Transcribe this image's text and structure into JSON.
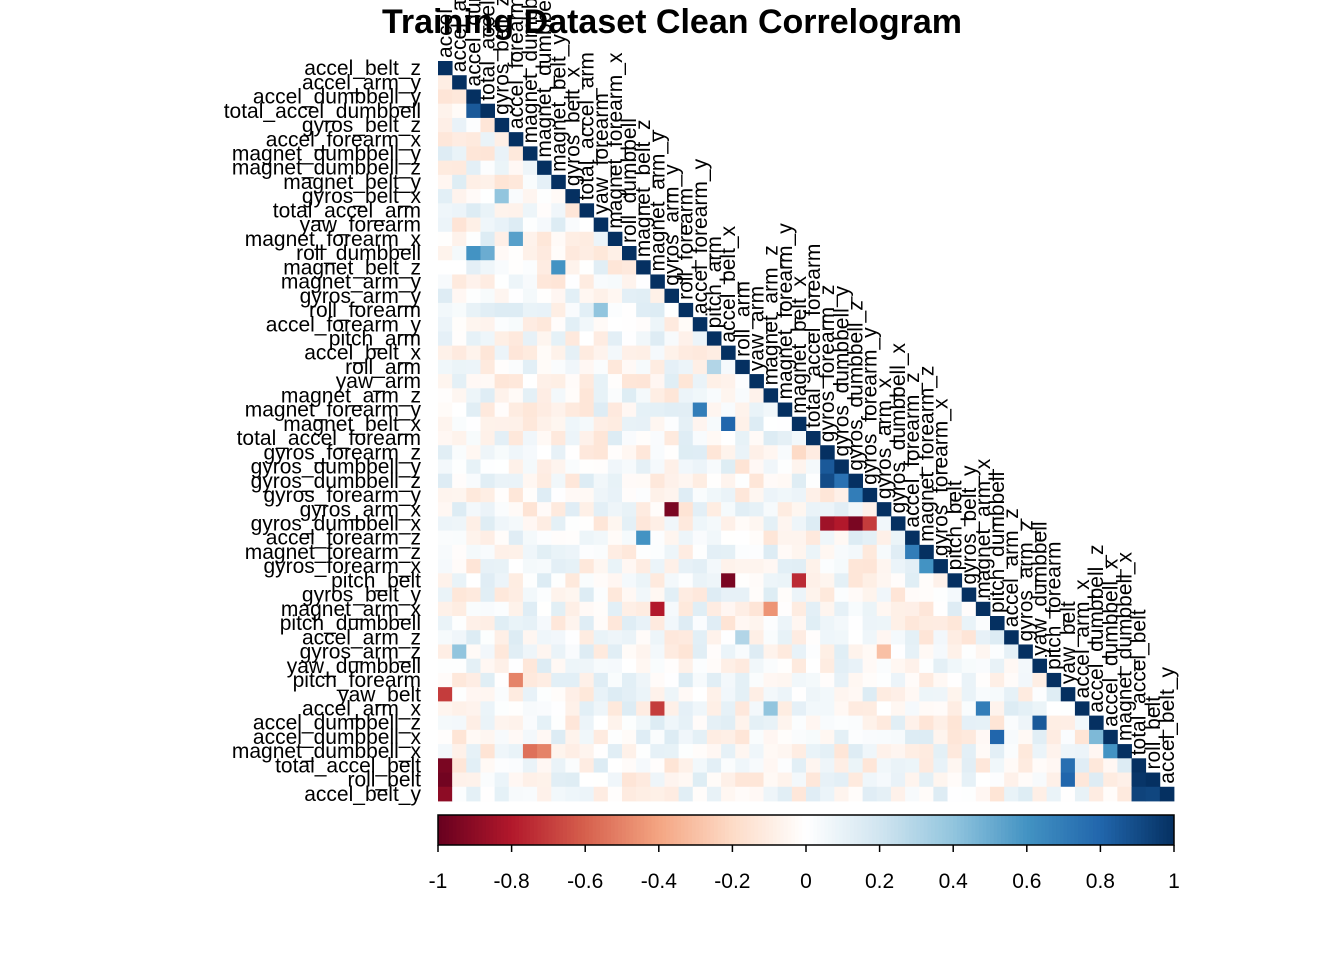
{
  "chart_data": {
    "type": "heatmap",
    "subtype": "correlogram-lower-triangle",
    "title": "Training Dataset Clean Correlogram",
    "variables": [
      "accel_belt_z",
      "accel_arm_y",
      "accel_dumbbell_y",
      "total_accel_dumbbell",
      "gyros_belt_z",
      "accel_forearm_x",
      "magnet_dumbbell_y",
      "magnet_dumbbell_z",
      "magnet_belt_y",
      "gyros_belt_x",
      "total_accel_arm",
      "yaw_forearm",
      "magnet_forearm_x",
      "roll_dumbbell",
      "magnet_belt_z",
      "magnet_arm_y",
      "gyros_arm_y",
      "roll_forearm",
      "accel_forearm_y",
      "pitch_arm",
      "accel_belt_x",
      "roll_arm",
      "yaw_arm",
      "magnet_arm_z",
      "magnet_forearm_y",
      "magnet_belt_x",
      "total_accel_forearm",
      "gyros_forearm_z",
      "gyros_dumbbell_y",
      "gyros_dumbbell_z",
      "gyros_forearm_y",
      "gyros_arm_x",
      "gyros_dumbbell_x",
      "accel_forearm_z",
      "magnet_forearm_z",
      "gyros_forearm_x",
      "pitch_belt",
      "gyros_belt_y",
      "magnet_arm_x",
      "pitch_dumbbell",
      "accel_arm_z",
      "gyros_arm_z",
      "yaw_dumbbell",
      "pitch_forearm",
      "yaw_belt",
      "accel_arm_x",
      "accel_dumbbell_z",
      "accel_dumbbell_x",
      "magnet_dumbbell_x",
      "total_accel_belt",
      "roll_belt",
      "accel_belt_y"
    ],
    "strong_pairs": [
      {
        "a": "gyros_dumbbell_z",
        "b": "gyros_dumbbell_x",
        "r": -0.95
      },
      {
        "a": "gyros_forearm_z",
        "b": "gyros_dumbbell_x",
        "r": -0.85
      },
      {
        "a": "gyros_dumbbell_y",
        "b": "gyros_dumbbell_x",
        "r": -0.8
      },
      {
        "a": "gyros_forearm_y",
        "b": "gyros_dumbbell_x",
        "r": -0.7
      },
      {
        "a": "gyros_forearm_z",
        "b": "gyros_dumbbell_y",
        "r": 0.85
      },
      {
        "a": "gyros_forearm_z",
        "b": "gyros_dumbbell_z",
        "r": 0.9
      },
      {
        "a": "gyros_dumbbell_y",
        "b": "gyros_dumbbell_z",
        "r": 0.75
      },
      {
        "a": "gyros_forearm_y",
        "b": "gyros_dumbbell_z",
        "r": 0.7
      },
      {
        "a": "magnet_forearm_z",
        "b": "gyros_forearm_x",
        "r": 0.6
      },
      {
        "a": "gyros_arm_y",
        "b": "gyros_arm_x",
        "r": -0.95
      },
      {
        "a": "accel_forearm_x",
        "b": "magnet_forearm_x",
        "r": 0.55
      },
      {
        "a": "magnet_arm_y",
        "b": "magnet_arm_x",
        "r": -0.8
      },
      {
        "a": "accel_arm_x",
        "b": "magnet_arm_x",
        "r": 0.7
      },
      {
        "a": "magnet_arm_z",
        "b": "magnet_arm_x",
        "r": -0.45
      },
      {
        "a": "magnet_belt_x",
        "b": "pitch_belt",
        "r": -0.75
      },
      {
        "a": "accel_belt_x",
        "b": "pitch_belt",
        "r": -0.95
      },
      {
        "a": "accel_belt_x",
        "b": "magnet_belt_x",
        "r": 0.8
      },
      {
        "a": "pitch_arm",
        "b": "roll_arm",
        "r": 0.3
      },
      {
        "a": "roll_arm",
        "b": "accel_arm_z",
        "r": 0.3
      },
      {
        "a": "accel_arm_y",
        "b": "gyros_arm_z",
        "r": 0.4
      },
      {
        "a": "accel_belt_z",
        "b": "roll_belt",
        "r": -0.97
      },
      {
        "a": "accel_belt_z",
        "b": "total_accel_belt",
        "r": -0.95
      },
      {
        "a": "accel_belt_z",
        "b": "accel_belt_y",
        "r": -0.9
      },
      {
        "a": "roll_belt",
        "b": "total_accel_belt",
        "r": 0.98
      },
      {
        "a": "roll_belt",
        "b": "accel_belt_y",
        "r": 0.92
      },
      {
        "a": "total_accel_belt",
        "b": "accel_belt_y",
        "r": 0.93
      },
      {
        "a": "yaw_belt",
        "b": "roll_belt",
        "r": 0.8
      },
      {
        "a": "yaw_belt",
        "b": "total_accel_belt",
        "r": 0.76
      },
      {
        "a": "accel_belt_z",
        "b": "yaw_belt",
        "r": -0.7
      },
      {
        "a": "total_accel_dumbbell",
        "b": "accel_dumbbell_y",
        "r": 0.85
      },
      {
        "a": "accel_dumbbell_y",
        "b": "roll_dumbbell",
        "r": 0.6
      },
      {
        "a": "total_accel_dumbbell",
        "b": "roll_dumbbell",
        "r": 0.5
      },
      {
        "a": "magnet_dumbbell_x",
        "b": "accel_dumbbell_x",
        "r": 0.6
      },
      {
        "a": "accel_dumbbell_z",
        "b": "yaw_dumbbell",
        "r": 0.85
      },
      {
        "a": "accel_dumbbell_x",
        "b": "pitch_dumbbell",
        "r": 0.8
      },
      {
        "a": "accel_dumbbell_z",
        "b": "accel_dumbbell_x",
        "r": 0.45
      },
      {
        "a": "magnet_dumbbell_y",
        "b": "magnet_dumbbell_x",
        "r": -0.55
      },
      {
        "a": "magnet_dumbbell_x",
        "b": "magnet_dumbbell_z",
        "r": -0.5
      },
      {
        "a": "accel_forearm_y",
        "b": "magnet_forearm_y",
        "r": 0.7
      },
      {
        "a": "accel_forearm_z",
        "b": "magnet_forearm_z",
        "r": 0.7
      },
      {
        "a": "accel_forearm_x",
        "b": "pitch_forearm",
        "r": -0.5
      },
      {
        "a": "magnet_belt_y",
        "b": "magnet_belt_z",
        "r": 0.6
      },
      {
        "a": "magnet_belt_z",
        "b": "accel_forearm_z",
        "r": 0.6
      },
      {
        "a": "magnet_belt_x",
        "b": "gyros_forearm_z",
        "r": -0.2
      },
      {
        "a": "gyros_belt_x",
        "b": "gyros_belt_z",
        "r": 0.4
      },
      {
        "a": "magnet_arm_y",
        "b": "accel_arm_x",
        "r": -0.7
      },
      {
        "a": "magnet_arm_z",
        "b": "accel_arm_x",
        "r": 0.4
      },
      {
        "a": "gyros_arm_x",
        "b": "gyros_arm_z",
        "r": -0.3
      },
      {
        "a": "roll_forearm",
        "b": "yaw_forearm",
        "r": 0.4
      }
    ],
    "colorbar": {
      "ticks": [
        "-1",
        "-0.8",
        "-0.6",
        "-0.4",
        "-0.2",
        "0",
        "0.2",
        "0.4",
        "0.6",
        "0.8",
        "1"
      ],
      "range": [
        -1,
        1
      ],
      "colors": [
        "#67001F",
        "#B2182B",
        "#D6604D",
        "#F4A582",
        "#FDDBC7",
        "#FFFFFF",
        "#D1E5F0",
        "#92C5DE",
        "#4393C3",
        "#2166AC",
        "#053061"
      ]
    },
    "diagonal_value": 1
  }
}
